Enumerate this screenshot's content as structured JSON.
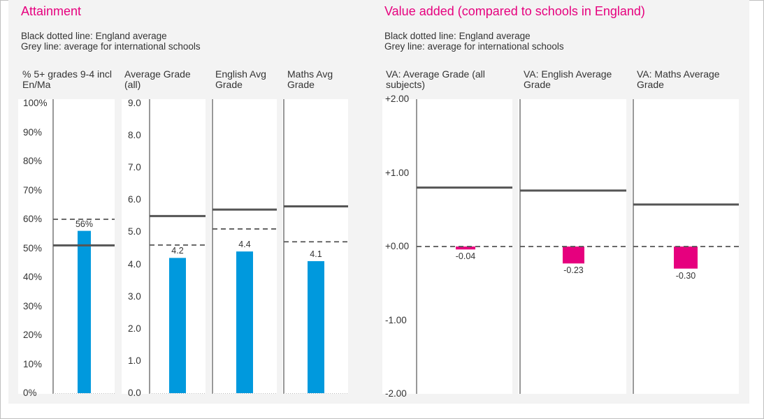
{
  "attainment": {
    "title": "Attainment",
    "note_line1": "Black dotted line: England average",
    "note_line2": "Grey line: average for international schools",
    "ticks_percent": [
      "100%",
      "90%",
      "80%",
      "70%",
      "60%",
      "50%",
      "40%",
      "30%",
      "20%",
      "10%",
      "0%"
    ],
    "ticks_grade": [
      "9.0",
      "8.0",
      "7.0",
      "6.0",
      "5.0",
      "4.0",
      "3.0",
      "2.0",
      "1.0",
      "0.0"
    ]
  },
  "value_added": {
    "title": "Value added (compared to schools in England)",
    "note_line1": "Black dotted line: England average",
    "note_line2": "Grey line: average for international schools",
    "ticks": [
      "+2.00",
      "+1.00",
      "+0.00",
      "-1.00",
      "-2.00"
    ]
  },
  "colors": {
    "bar_attainment": "#0099dd",
    "bar_value_added": "#e6007e",
    "title_accent": "#e6007e",
    "international_line": "#555555",
    "england_line": "#555555"
  },
  "chart_data": [
    {
      "type": "bar",
      "title": "% 5+ grades 9-4 incl En/Ma",
      "ylim": [
        0,
        100
      ],
      "value": 56,
      "value_label": "56%",
      "england_average": 60,
      "international_average": 51
    },
    {
      "type": "bar",
      "title": "Average Grade (all)",
      "ylim": [
        0,
        9
      ],
      "value": 4.2,
      "value_label": "4.2",
      "england_average": 4.6,
      "international_average": 5.5
    },
    {
      "type": "bar",
      "title": "English Avg Grade",
      "ylim": [
        0,
        9
      ],
      "value": 4.4,
      "value_label": "4.4",
      "england_average": 5.1,
      "international_average": 5.7
    },
    {
      "type": "bar",
      "title": "Maths Avg Grade",
      "ylim": [
        0,
        9
      ],
      "value": 4.1,
      "value_label": "4.1",
      "england_average": 4.7,
      "international_average": 5.8
    },
    {
      "type": "bar",
      "title": "VA: Average Grade (all subjects)",
      "ylim": [
        -2,
        2
      ],
      "value": -0.04,
      "value_label": "-0.04",
      "england_average": 0,
      "international_average": 0.8
    },
    {
      "type": "bar",
      "title": "VA: English Average Grade",
      "ylim": [
        -2,
        2
      ],
      "value": -0.23,
      "value_label": "-0.23",
      "england_average": 0,
      "international_average": 0.76
    },
    {
      "type": "bar",
      "title": "VA: Maths Average Grade",
      "ylim": [
        -2,
        2
      ],
      "value": -0.3,
      "value_label": "-0.30",
      "england_average": 0,
      "international_average": 0.57
    }
  ]
}
